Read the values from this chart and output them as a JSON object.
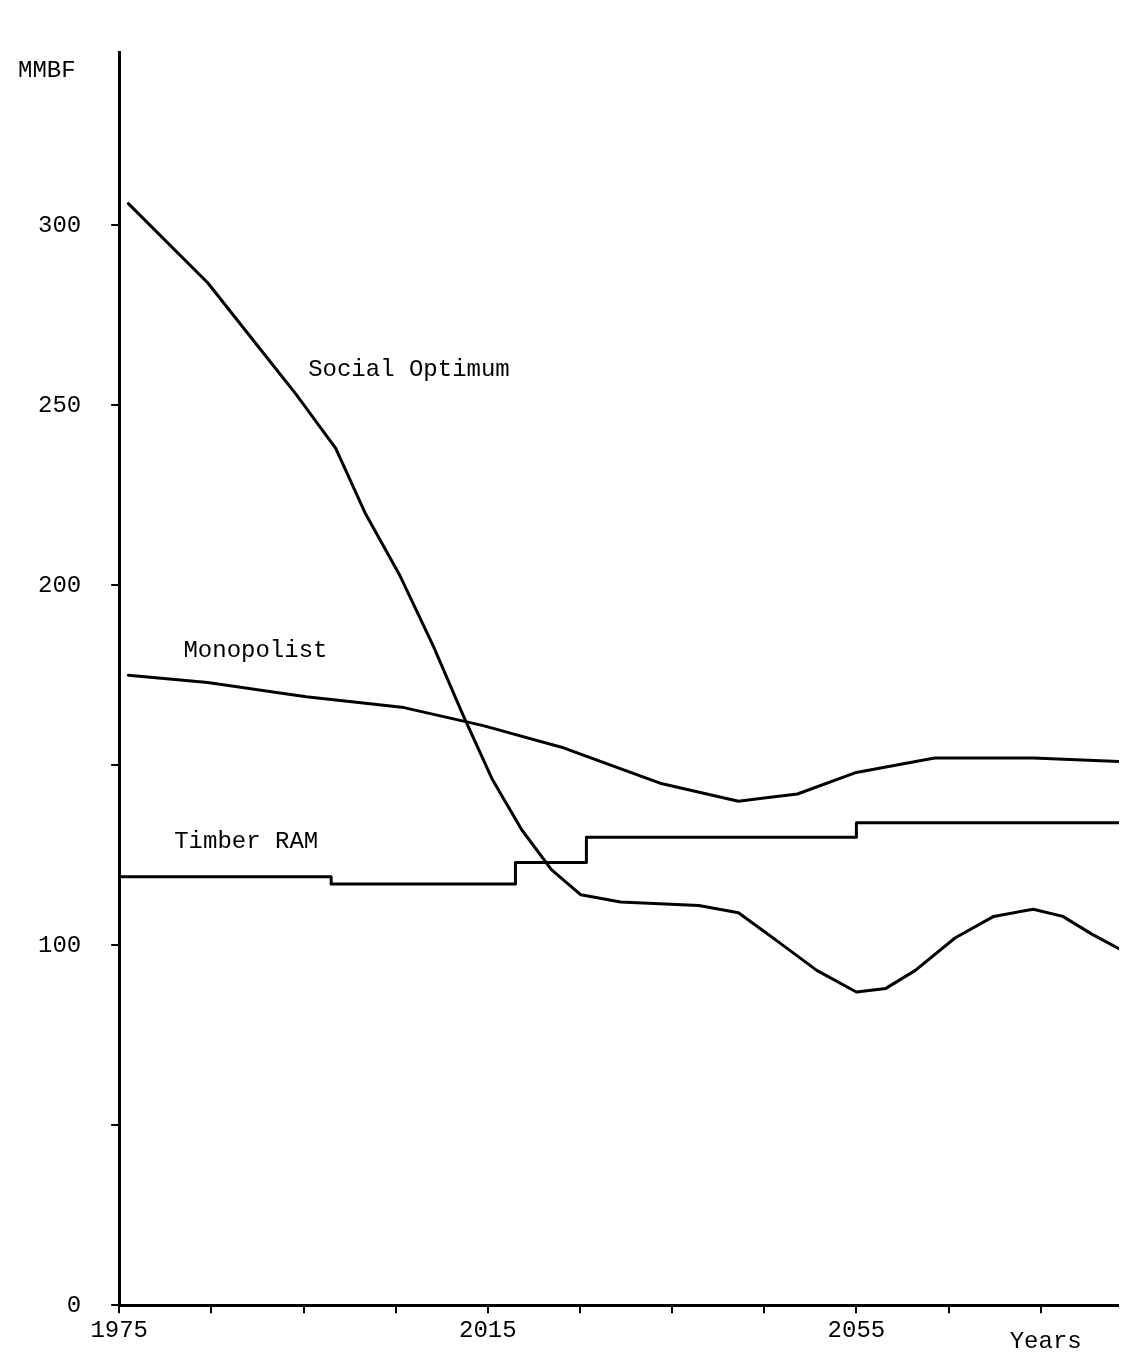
{
  "chart_data": {
    "type": "line",
    "xlabel": "Years",
    "ylabel": "MMBF",
    "xlim": [
      1975,
      2083.5
    ],
    "ylim": [
      0,
      348
    ],
    "xticks": [
      1975,
      {
        "value": 1985,
        "label": null
      },
      {
        "value": 1995,
        "label": null
      },
      {
        "value": 2005,
        "label": null
      },
      2015,
      {
        "value": 2025,
        "label": null
      },
      {
        "value": 2035,
        "label": null
      },
      {
        "value": 2045,
        "label": null
      },
      2055,
      {
        "value": 2065,
        "label": null
      },
      {
        "value": 2075,
        "label": null
      }
    ],
    "yticks": [
      0,
      {
        "value": 50,
        "label": null
      },
      100,
      {
        "value": 150,
        "label": null
      },
      200,
      250,
      300
    ],
    "grid": false,
    "legend": false,
    "marker": "none",
    "line_style": "solid",
    "series": [
      {
        "name": "Social Optimum",
        "type": "line",
        "color": "#000000",
        "x": [
          1976,
          1984.6,
          1994.2,
          1998.5,
          2001.7,
          2005.4,
          2009.1,
          2012.3,
          2015.5,
          2018.7,
          2021.9,
          2025.1,
          2029.4,
          2037.9,
          2042.2,
          2046.5,
          2050.7,
          2055,
          2058.2,
          2061.4,
          2065.7,
          2069.9,
          2074.2,
          2077.4,
          2080.6,
          2083.5
        ],
        "values": [
          306,
          284,
          253,
          238,
          220,
          203,
          183,
          164,
          146,
          132,
          121,
          114,
          112,
          111,
          109,
          101,
          93,
          87,
          88,
          93,
          102,
          108,
          110,
          108,
          103,
          99
        ]
      },
      {
        "name": "Monopolist",
        "type": "line",
        "color": "#000000",
        "x": [
          1976,
          1984.6,
          1995.3,
          2005.9,
          2014.5,
          2023,
          2033.7,
          2042.2,
          2048.6,
          2055,
          2063.5,
          2074.2,
          2083.5
        ],
        "values": [
          175,
          173,
          169,
          166,
          161,
          155,
          145,
          140,
          142,
          148,
          152,
          152,
          151
        ]
      },
      {
        "name": "Timber RAM",
        "type": "step",
        "color": "#000000",
        "x": [
          1975,
          1998,
          2018,
          2025.7,
          2055,
          2075.3,
          2083.5
        ],
        "values": [
          121,
          119,
          117,
          123,
          130,
          134,
          134
        ]
      }
    ]
  }
}
